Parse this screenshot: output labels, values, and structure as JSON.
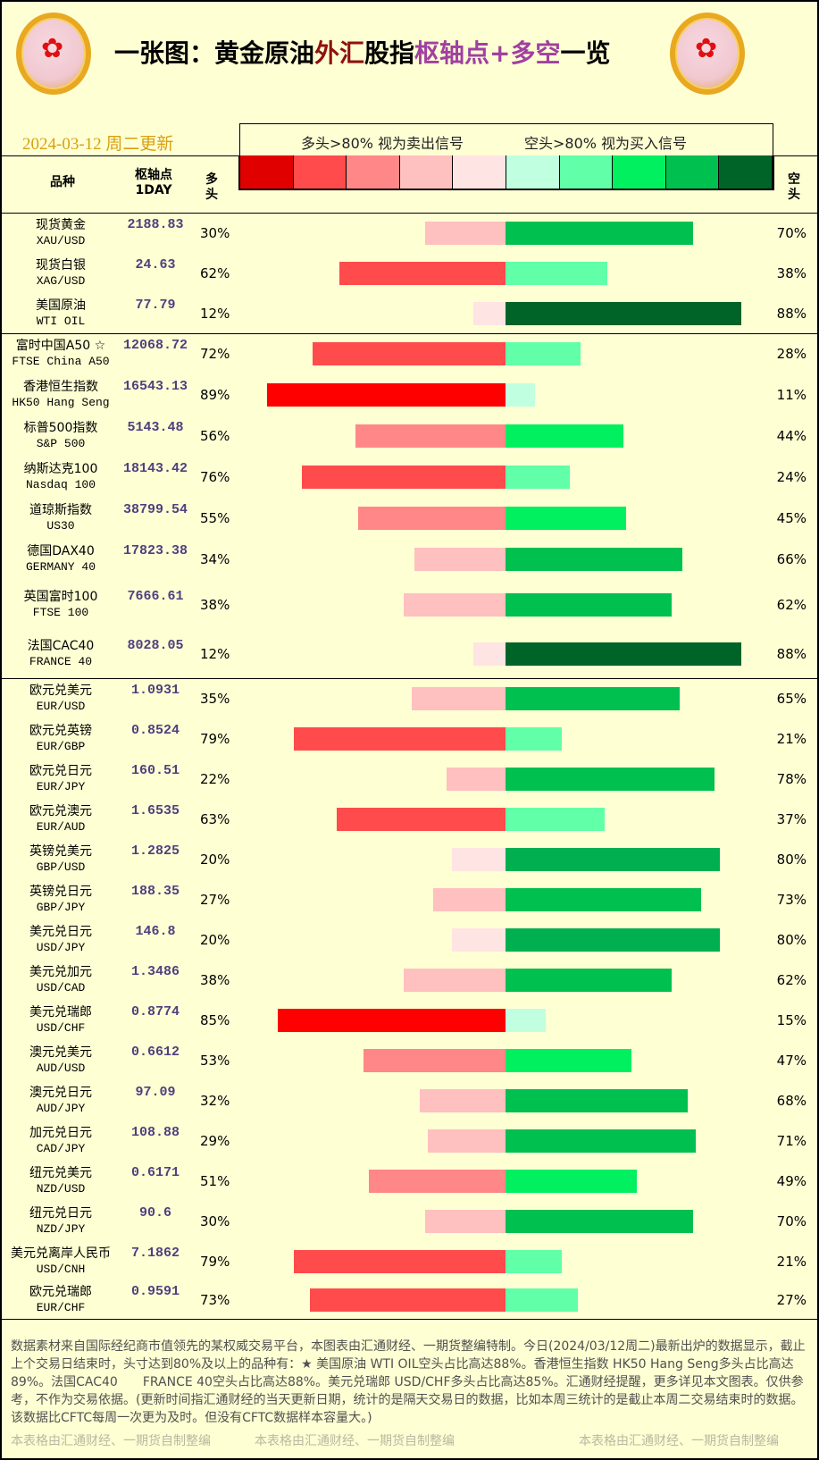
{
  "header": {
    "title_parts": [
      "一张图：黄金原油",
      "外汇",
      "股指",
      "枢轴点+多空",
      "一览"
    ],
    "date": "2024-03-12 周二更新",
    "legend_left": "多头>80% 视为卖出信号",
    "legend_right": "空头>80% 视为买入信号",
    "col_name": "品种",
    "col_pivot": "枢轴点",
    "col_pivot_sub": "1DAY",
    "col_long": "多头",
    "col_short": "空头",
    "swatch_colors": [
      "#e00000",
      "#ff4b4b",
      "#ff8787",
      "#ffc0c0",
      "#ffe4e4",
      "#c0ffe0",
      "#60ffa8",
      "#00f060",
      "#00c050",
      "#006428"
    ]
  },
  "rows": [
    {
      "cn": "现货黄金",
      "en": "XAU/USD",
      "pivot": "2188.83",
      "long": 30,
      "short": 70
    },
    {
      "cn": "现货白银",
      "en": "XAG/USD",
      "pivot": "24.63",
      "long": 62,
      "short": 38
    },
    {
      "cn": "美国原油",
      "en": "WTI OIL",
      "pivot": "77.79",
      "long": 12,
      "short": 88
    },
    {
      "cn": "富时中国A50 ☆",
      "en": "FTSE China A50",
      "pivot": "12068.72",
      "long": 72,
      "short": 28
    },
    {
      "cn": "香港恒生指数",
      "en": "HK50 Hang Seng",
      "pivot": "16543.13",
      "long": 89,
      "short": 11
    },
    {
      "cn": "标普500指数",
      "en": "S&P 500",
      "pivot": "5143.48",
      "long": 56,
      "short": 44
    },
    {
      "cn": "纳斯达克100",
      "en": "Nasdaq 100",
      "pivot": "18143.42",
      "long": 76,
      "short": 24
    },
    {
      "cn": "道琼斯指数",
      "en": "US30",
      "pivot": "38799.54",
      "long": 55,
      "short": 45
    },
    {
      "cn": "德国DAX40",
      "en": "GERMANY 40",
      "pivot": "17823.38",
      "long": 34,
      "short": 66
    },
    {
      "cn": "英国富时100",
      "en": "FTSE 100",
      "pivot": "7666.61",
      "long": 38,
      "short": 62
    },
    {
      "cn": "法国CAC40",
      "en": "FRANCE 40",
      "pivot": "8028.05",
      "long": 12,
      "short": 88
    },
    {
      "cn": "欧元兑美元",
      "en": "EUR/USD",
      "pivot": "1.0931",
      "long": 35,
      "short": 65
    },
    {
      "cn": "欧元兑英镑",
      "en": "EUR/GBP",
      "pivot": "0.8524",
      "long": 79,
      "short": 21
    },
    {
      "cn": "欧元兑日元",
      "en": "EUR/JPY",
      "pivot": "160.51",
      "long": 22,
      "short": 78
    },
    {
      "cn": "欧元兑澳元",
      "en": "EUR/AUD",
      "pivot": "1.6535",
      "long": 63,
      "short": 37
    },
    {
      "cn": "英镑兑美元",
      "en": "GBP/USD",
      "pivot": "1.2825",
      "long": 20,
      "short": 80
    },
    {
      "cn": "英镑兑日元",
      "en": "GBP/JPY",
      "pivot": "188.35",
      "long": 27,
      "short": 73
    },
    {
      "cn": "美元兑日元",
      "en": "USD/JPY",
      "pivot": "146.8",
      "long": 20,
      "short": 80
    },
    {
      "cn": "美元兑加元",
      "en": "USD/CAD",
      "pivot": "1.3486",
      "long": 38,
      "short": 62
    },
    {
      "cn": "美元兑瑞郎",
      "en": "USD/CHF",
      "pivot": "0.8774",
      "long": 85,
      "short": 15
    },
    {
      "cn": "澳元兑美元",
      "en": "AUD/USD",
      "pivot": "0.6612",
      "long": 53,
      "short": 47
    },
    {
      "cn": "澳元兑日元",
      "en": "AUD/JPY",
      "pivot": "97.09",
      "long": 32,
      "short": 68
    },
    {
      "cn": "加元兑日元",
      "en": "CAD/JPY",
      "pivot": "108.88",
      "long": 29,
      "short": 71
    },
    {
      "cn": "纽元兑美元",
      "en": "NZD/USD",
      "pivot": "0.6171",
      "long": 51,
      "short": 49
    },
    {
      "cn": "纽元兑日元",
      "en": "NZD/JPY",
      "pivot": "90.6",
      "long": 30,
      "short": 70
    },
    {
      "cn": "美元兑离岸人民币",
      "en": "USD/CNH",
      "pivot": "7.1862",
      "long": 79,
      "short": 21
    },
    {
      "cn": "欧元兑瑞郎",
      "en": "EUR/CHF",
      "pivot": "0.9591",
      "long": 73,
      "short": 27
    }
  ],
  "footer": {
    "text": "数据素材来自国际经纪商市值领先的某权威交易平台，本图表由汇通财经、一期货整编特制。今日(2024/03/12周二)最新出炉的数据显示，截止上个交易日结束时，头寸达到80%及以上的品种有：★ 美国原油 WTI OIL空头占比高达88%。香港恒生指数 HK50 Hang Seng多头占比高达89%。法国CAC40　　FRANCE 40空头占比高达88%。美元兑瑞郎 USD/CHF多头占比高达85%。汇通财经提醒，更多详见本文图表。仅供参考，不作为交易依据。(更新时间指汇通财经的当天更新日期，统计的是隔天交易日的数据，比如本周三统计的是截止本周二交易结束时的数据。该数据比CFTC每周一次更为及时。但没有CFTC数据样本容量大。)",
    "watermark": "本表格由汇通财经、一期货自制整编"
  }
}
